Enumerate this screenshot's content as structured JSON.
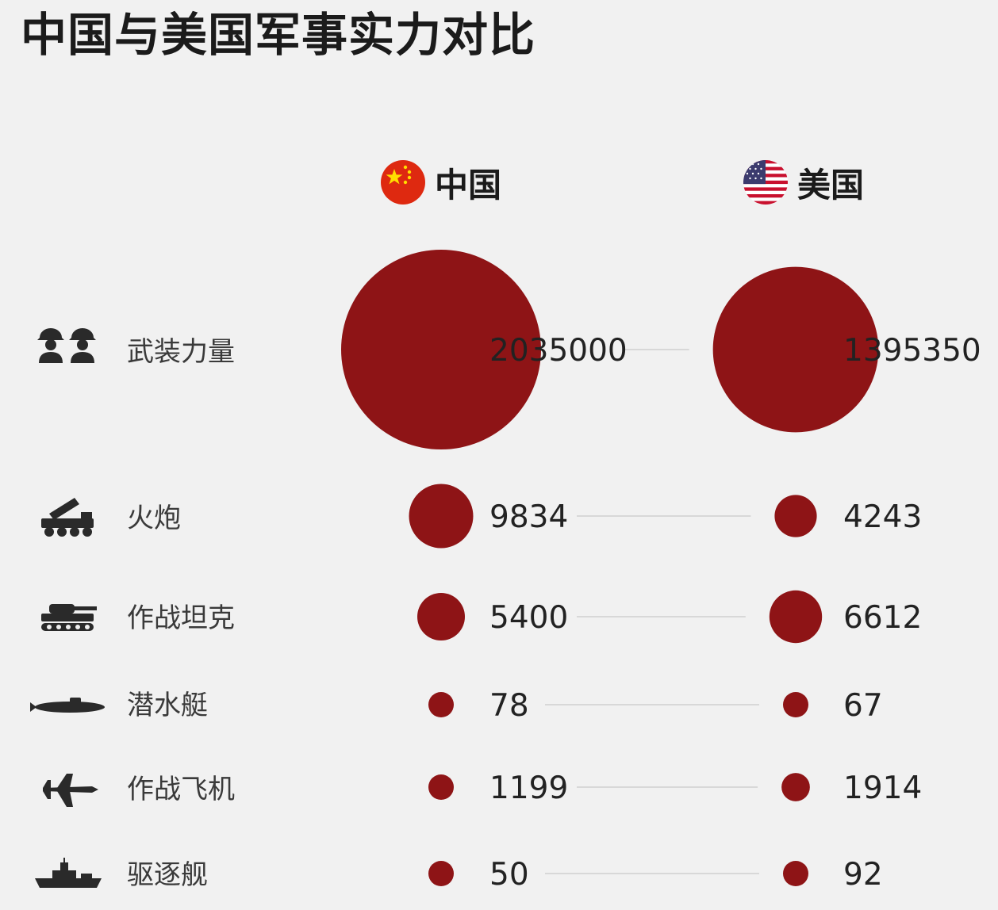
{
  "title": "中国与美国军事实力对比",
  "countries": [
    {
      "name": "中国",
      "flag_icon": "china-flag-icon"
    },
    {
      "name": "美国",
      "flag_icon": "usa-flag-icon"
    }
  ],
  "colors": {
    "bubble": "#8e1416",
    "background": "#f1f1f1",
    "connector": "#cfcfcf"
  },
  "chart_data": {
    "type": "bubble-comparison",
    "title": "中国与美国军事实力对比",
    "series": [
      {
        "name": "中国",
        "values": [
          2035000,
          9834,
          5400,
          78,
          1199,
          50
        ]
      },
      {
        "name": "美国",
        "values": [
          1395350,
          4243,
          6612,
          67,
          1914,
          92
        ]
      }
    ],
    "categories": [
      "武装力量",
      "火炮",
      "作战坦克",
      "潜水艇",
      "作战飞机",
      "驱逐舰"
    ],
    "category_icons": [
      "soldiers-icon",
      "rocket-launcher-icon",
      "tank-icon",
      "submarine-icon",
      "fighter-jet-icon",
      "destroyer-icon"
    ],
    "value_labels": [
      [
        "2035000",
        "1395350"
      ],
      [
        "9834",
        "4243"
      ],
      [
        "5400",
        "6612"
      ],
      [
        "78",
        "67"
      ],
      [
        "1199",
        "1914"
      ],
      [
        "50",
        "92"
      ]
    ]
  }
}
